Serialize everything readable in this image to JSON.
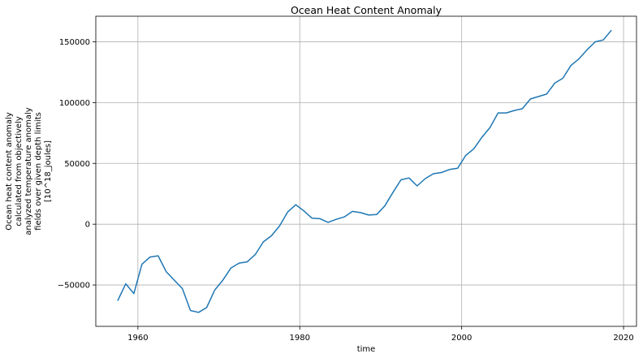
{
  "chart_data": {
    "type": "line",
    "title": "Ocean Heat Content Anomaly",
    "xlabel": "time",
    "ylabel_lines": [
      "Ocean heat content anomaly",
      "calculated from objectively",
      "analyzed temperature anomaly",
      "fields over given depth limits",
      "[10^18_joules]"
    ],
    "xlim": [
      1954.8,
      2021.6
    ],
    "ylim": [
      -84000,
      171000
    ],
    "grid": true,
    "line_color": "#1f77b4",
    "xticks": [
      {
        "value": 1960,
        "label": "1960"
      },
      {
        "value": 1980,
        "label": "1980"
      },
      {
        "value": 2000,
        "label": "2000"
      },
      {
        "value": 2020,
        "label": "2020"
      }
    ],
    "yticks": [
      {
        "value": -50000,
        "label": "−50000"
      },
      {
        "value": 0,
        "label": "0"
      },
      {
        "value": 50000,
        "label": "50000"
      },
      {
        "value": 100000,
        "label": "100000"
      },
      {
        "value": 150000,
        "label": "150000"
      }
    ],
    "series": [
      {
        "x": [
          1957.5,
          1958.5,
          1959.5,
          1960.5,
          1961.5,
          1962.5,
          1963.5,
          1964.5,
          1965.5,
          1966.5,
          1967.5,
          1968.5,
          1969.5,
          1970.5,
          1971.5,
          1972.5,
          1973.5,
          1974.5,
          1975.5,
          1976.5,
          1977.5,
          1978.5,
          1979.5,
          1980.5,
          1981.5,
          1982.5,
          1983.5,
          1984.5,
          1985.5,
          1986.5,
          1987.5,
          1988.5,
          1989.5,
          1990.5,
          1991.5,
          1992.5,
          1993.5,
          1994.5,
          1995.5,
          1996.5,
          1997.5,
          1998.5,
          1999.5,
          2000.5,
          2001.5,
          2002.5,
          2003.5,
          2004.5,
          2005.5,
          2006.5,
          2007.5,
          2008.5,
          2009.5,
          2010.5,
          2011.5,
          2012.5,
          2013.5,
          2014.5,
          2015.5,
          2016.5,
          2017.5,
          2018.5
        ],
        "y": [
          -63000,
          -49000,
          -57000,
          -33000,
          -27000,
          -26000,
          -39000,
          -46000,
          -53000,
          -71000,
          -72500,
          -68500,
          -54000,
          -46000,
          -36000,
          -32000,
          -31000,
          -25000,
          -14500,
          -9500,
          -1500,
          10000,
          16000,
          11000,
          5000,
          4500,
          1500,
          4000,
          6000,
          10500,
          9500,
          7500,
          8000,
          15000,
          26000,
          36500,
          38000,
          31500,
          37500,
          41500,
          42500,
          45000,
          46000,
          56500,
          62000,
          71500,
          79500,
          91500,
          91500,
          93500,
          95000,
          103000,
          105000,
          107000,
          116000,
          120000,
          130500,
          136000,
          143500,
          150000,
          151500,
          159500
        ]
      }
    ]
  }
}
